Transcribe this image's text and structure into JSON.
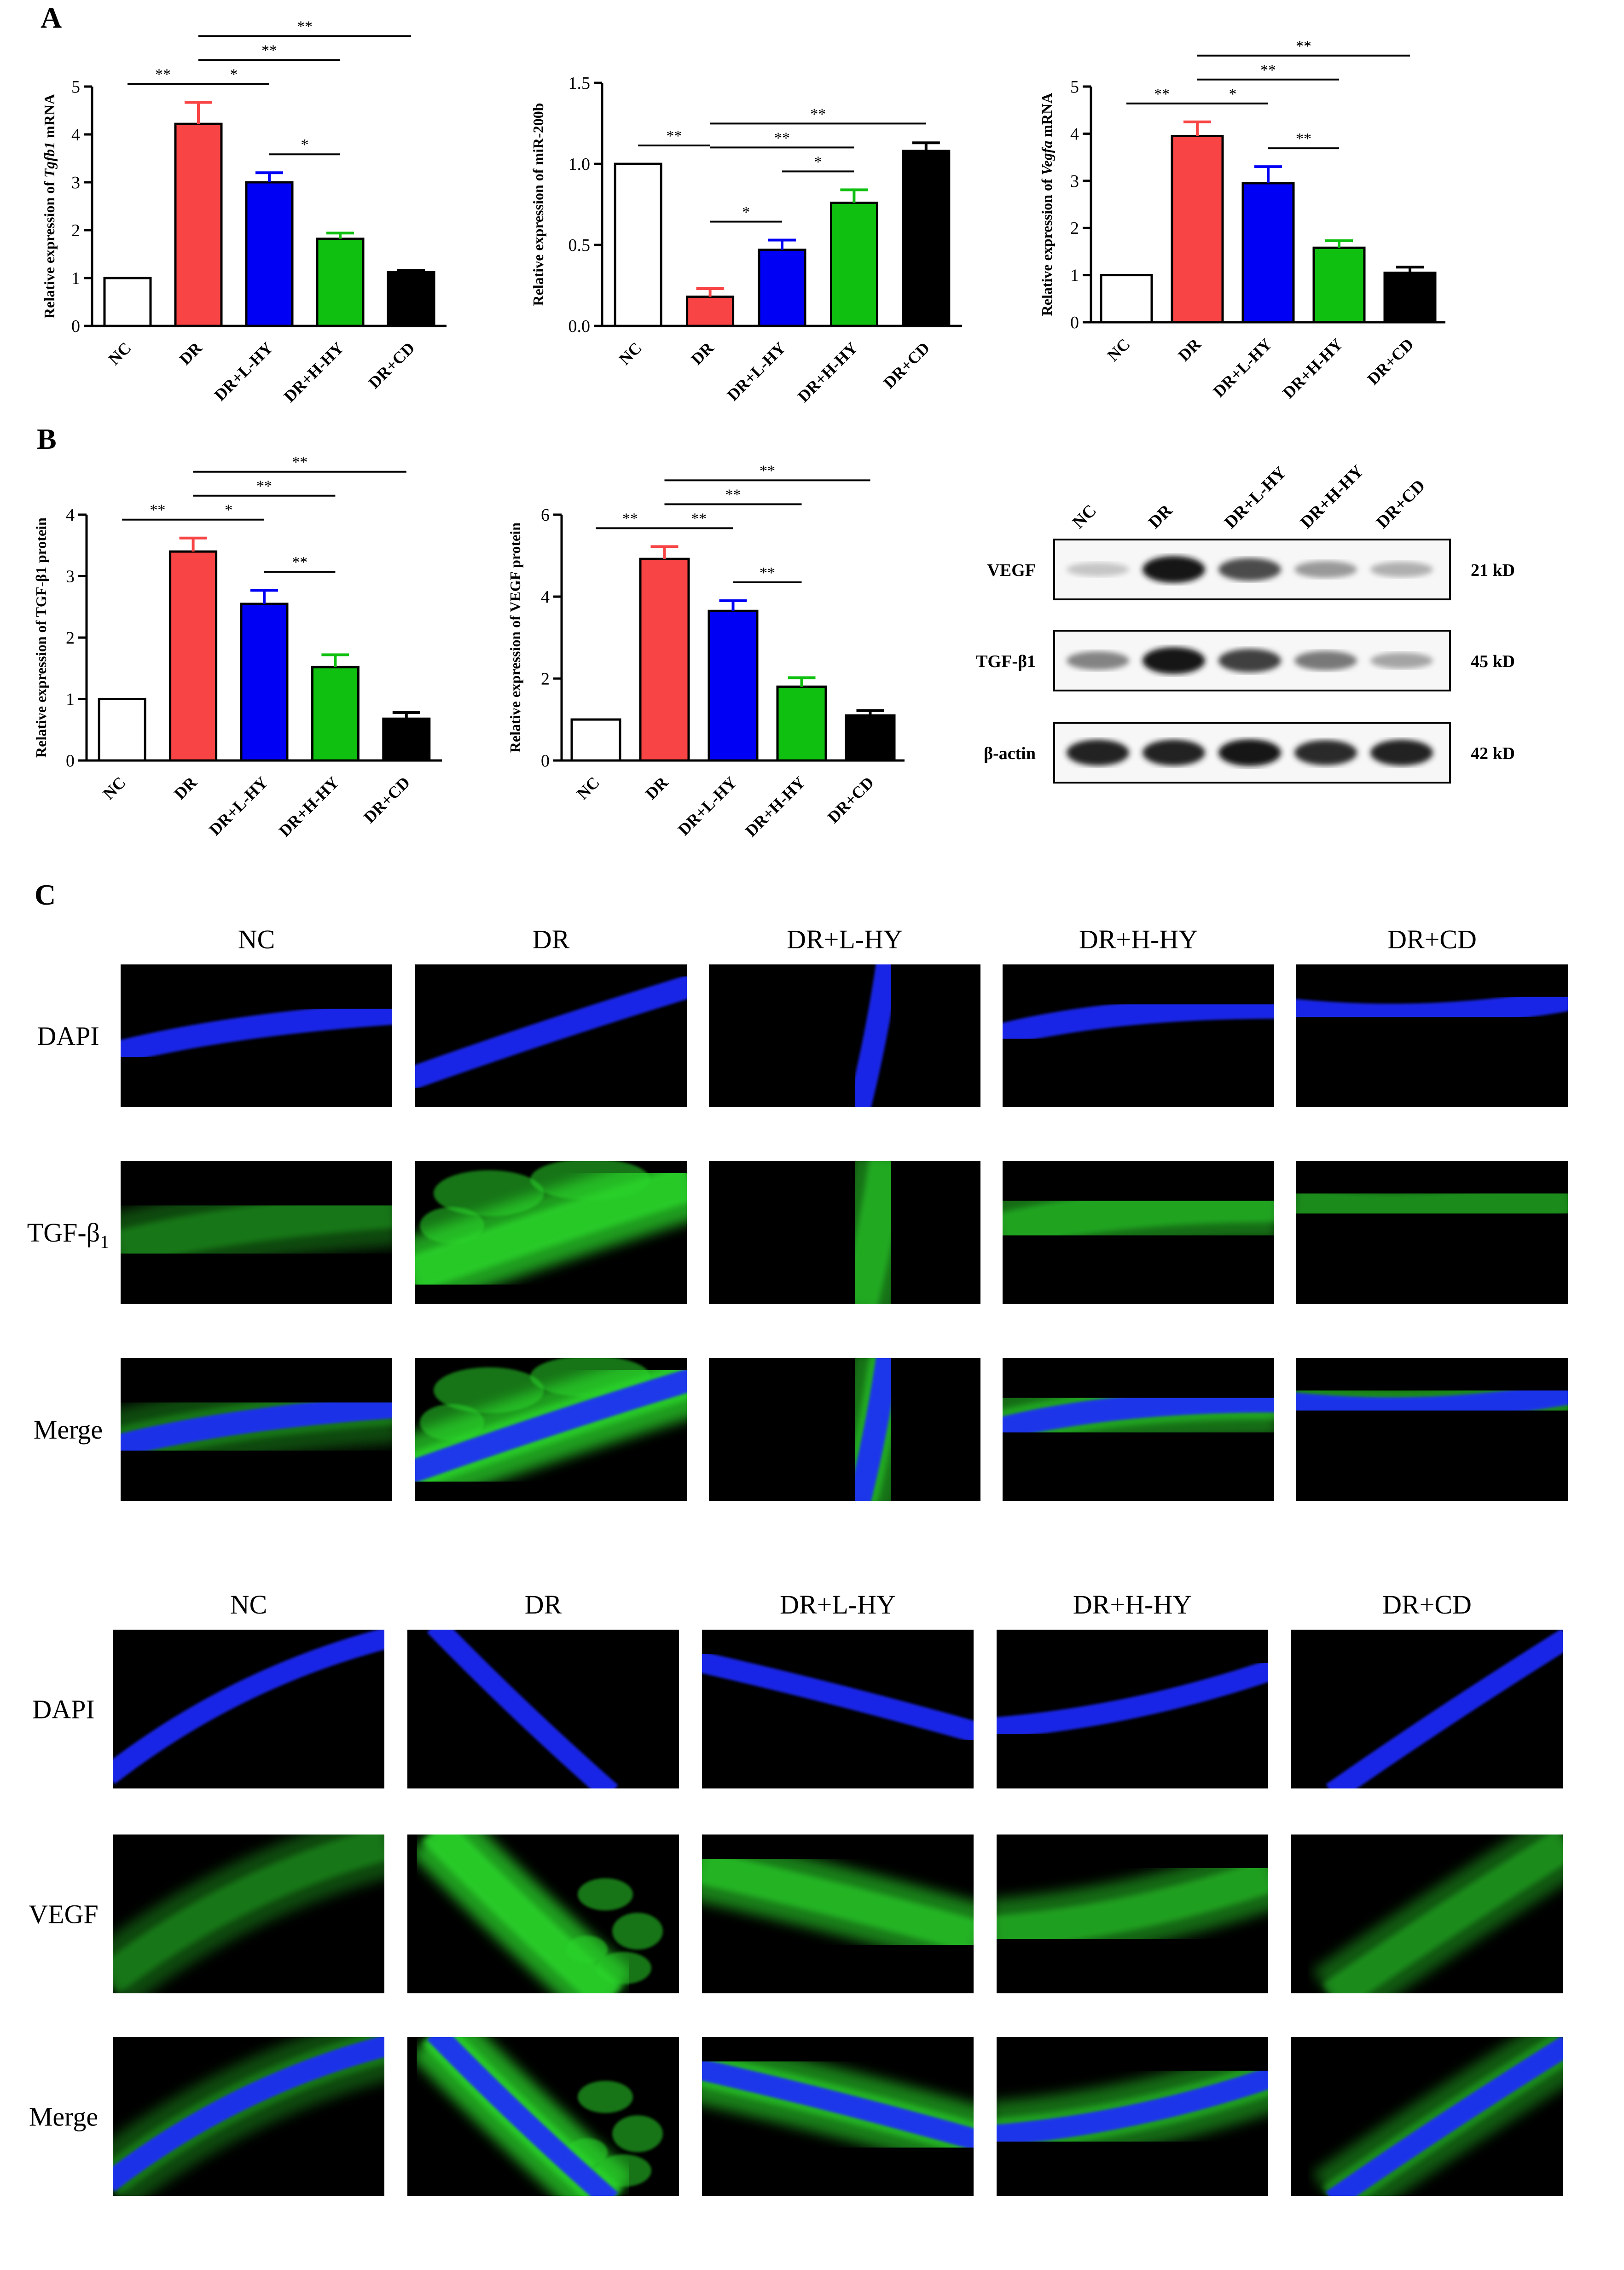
{
  "panel_labels": [
    "A",
    "B",
    "C"
  ],
  "colors": {
    "NC": "#ffffff",
    "DR": "#f84444",
    "DR+L-HY": "#0000f5",
    "DR+H-HY": "#10c010",
    "DR+CD": "#000000",
    "dapi": "#1a2cff",
    "green": "#2bd42b",
    "background": "#000000"
  },
  "chart_data": [
    {
      "type": "bar",
      "panel": "A",
      "ylabel_parts": [
        "Relative expression of ",
        "Tgfb1",
        " mRNA"
      ],
      "categories": [
        "NC",
        "DR",
        "DR+L-HY",
        "DR+H-HY",
        "DR+CD"
      ],
      "values": [
        1.0,
        4.22,
        3.0,
        1.82,
        1.12
      ],
      "errors": [
        0.0,
        0.45,
        0.2,
        0.12,
        0.04
      ],
      "ylim": [
        0,
        5
      ],
      "yticks": [
        0,
        1,
        2,
        3,
        4,
        5
      ],
      "ytick_labels": [
        "0",
        "1",
        "2",
        "3",
        "4",
        "5"
      ],
      "sig": [
        {
          "from": 0,
          "to": 1,
          "label": "**"
        },
        {
          "from": 1,
          "to": 2,
          "label": "*"
        },
        {
          "from": 1,
          "to": 3,
          "label": "**"
        },
        {
          "from": 1,
          "to": 4,
          "label": "**"
        },
        {
          "from": 2,
          "to": 3,
          "label": "*"
        }
      ]
    },
    {
      "type": "bar",
      "panel": "A",
      "ylabel_parts": [
        "Relative expression of miR-200b",
        "",
        ""
      ],
      "categories": [
        "NC",
        "DR",
        "DR+L-HY",
        "DR+H-HY",
        "DR+CD"
      ],
      "values": [
        1.0,
        0.18,
        0.47,
        0.76,
        1.08
      ],
      "errors": [
        0.0,
        0.05,
        0.06,
        0.08,
        0.05
      ],
      "ylim": [
        0,
        1.5
      ],
      "yticks": [
        0,
        0.5,
        1.0,
        1.5
      ],
      "ytick_labels": [
        "0.0",
        "0.5",
        "1.0",
        "1.5"
      ],
      "sig": [
        {
          "from": 0,
          "to": 1,
          "label": "**"
        },
        {
          "from": 1,
          "to": 2,
          "label": "*"
        },
        {
          "from": 2,
          "to": 3,
          "label": "*"
        },
        {
          "from": 1,
          "to": 3,
          "label": "**"
        },
        {
          "from": 1,
          "to": 4,
          "label": "**"
        }
      ]
    },
    {
      "type": "bar",
      "panel": "A",
      "ylabel_parts": [
        "Relative expression of ",
        "Vegfa",
        " mRNA"
      ],
      "categories": [
        "NC",
        "DR",
        "DR+L-HY",
        "DR+H-HY",
        "DR+CD"
      ],
      "values": [
        1.0,
        3.95,
        2.95,
        1.58,
        1.05
      ],
      "errors": [
        0.0,
        0.3,
        0.35,
        0.15,
        0.12
      ],
      "ylim": [
        0,
        5
      ],
      "yticks": [
        0,
        1,
        2,
        3,
        4,
        5
      ],
      "ytick_labels": [
        "0",
        "1",
        "2",
        "3",
        "4",
        "5"
      ],
      "sig": [
        {
          "from": 0,
          "to": 1,
          "label": "**"
        },
        {
          "from": 1,
          "to": 2,
          "label": "*"
        },
        {
          "from": 1,
          "to": 3,
          "label": "**"
        },
        {
          "from": 1,
          "to": 4,
          "label": "**"
        },
        {
          "from": 2,
          "to": 3,
          "label": "**"
        }
      ]
    },
    {
      "type": "bar",
      "panel": "B",
      "ylabel_parts": [
        "Relative expression of TGF-β1 protein",
        "",
        ""
      ],
      "categories": [
        "NC",
        "DR",
        "DR+L-HY",
        "DR+H-HY",
        "DR+CD"
      ],
      "values": [
        1.0,
        3.4,
        2.55,
        1.52,
        0.68
      ],
      "errors": [
        0.0,
        0.22,
        0.22,
        0.2,
        0.1
      ],
      "ylim": [
        0,
        4
      ],
      "yticks": [
        0,
        1,
        2,
        3,
        4
      ],
      "ytick_labels": [
        "0",
        "1",
        "2",
        "3",
        "4"
      ],
      "sig": [
        {
          "from": 0,
          "to": 1,
          "label": "**"
        },
        {
          "from": 1,
          "to": 2,
          "label": "*"
        },
        {
          "from": 1,
          "to": 3,
          "label": "**"
        },
        {
          "from": 1,
          "to": 4,
          "label": "**"
        },
        {
          "from": 2,
          "to": 3,
          "label": "**"
        }
      ]
    },
    {
      "type": "bar",
      "panel": "B",
      "ylabel_parts": [
        "Relative expression of VEGF protein",
        "",
        ""
      ],
      "categories": [
        "NC",
        "DR",
        "DR+L-HY",
        "DR+H-HY",
        "DR+CD"
      ],
      "values": [
        1.0,
        4.92,
        3.65,
        1.8,
        1.1
      ],
      "errors": [
        0.0,
        0.3,
        0.25,
        0.22,
        0.12
      ],
      "ylim": [
        0,
        6
      ],
      "yticks": [
        0,
        2,
        4,
        6
      ],
      "ytick_labels": [
        "0",
        "2",
        "4",
        "6"
      ],
      "sig": [
        {
          "from": 0,
          "to": 1,
          "label": "**"
        },
        {
          "from": 1,
          "to": 2,
          "label": "**"
        },
        {
          "from": 1,
          "to": 3,
          "label": "**"
        },
        {
          "from": 1,
          "to": 4,
          "label": "**"
        },
        {
          "from": 2,
          "to": 3,
          "label": "**"
        }
      ]
    }
  ],
  "western_blot": {
    "lane_labels": [
      "NC",
      "DR",
      "DR+L-HY",
      "DR+H-HY",
      "DR+CD"
    ],
    "rows": [
      {
        "name": "VEGF",
        "size": "21 kD",
        "intensity": [
          0.15,
          0.95,
          0.7,
          0.35,
          0.25
        ]
      },
      {
        "name": "TGF-β1",
        "size": "45 kD",
        "intensity": [
          0.45,
          0.95,
          0.75,
          0.5,
          0.3
        ]
      },
      {
        "name": "β-actin",
        "size": "42 kD",
        "intensity": [
          0.9,
          0.9,
          0.95,
          0.85,
          0.9
        ]
      }
    ]
  },
  "if_grid_1": {
    "columns": [
      "NC",
      "DR",
      "DR+L-HY",
      "DR+H-HY",
      "DR+CD"
    ],
    "row_labels": [
      "DAPI",
      "TGF-β",
      "Merge"
    ],
    "subscript": "1"
  },
  "if_grid_2": {
    "columns": [
      "NC",
      "DR",
      "DR+L-HY",
      "DR+H-HY",
      "DR+CD"
    ],
    "row_labels": [
      "DAPI",
      "VEGF",
      "Merge"
    ]
  }
}
